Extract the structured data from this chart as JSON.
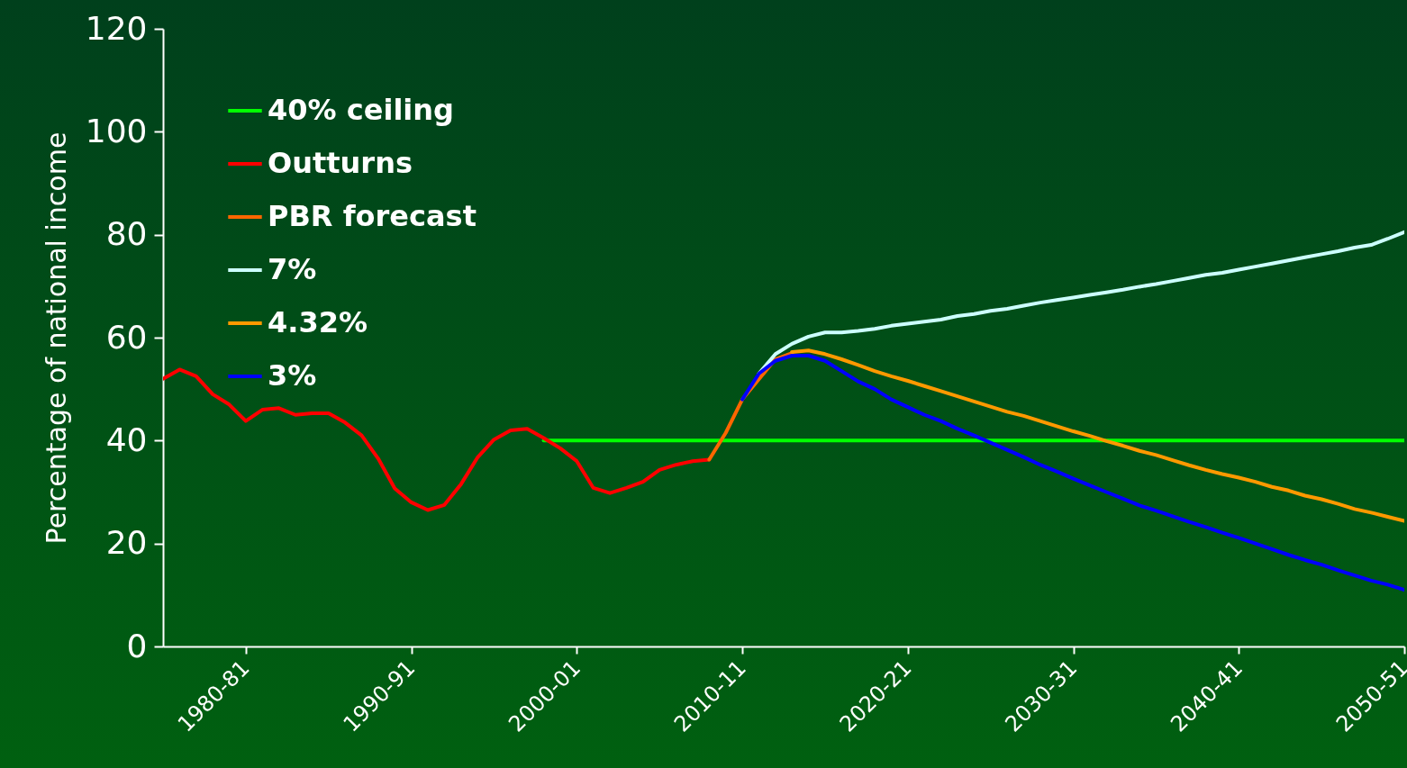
{
  "chart_data": {
    "type": "line",
    "ylabel": "Percentage of national income",
    "ylim": [
      0,
      120
    ],
    "yticks": [
      0,
      20,
      40,
      60,
      80,
      100,
      120
    ],
    "categories": [
      null,
      null,
      null,
      null,
      null,
      "1980-81",
      null,
      null,
      null,
      null,
      null,
      null,
      null,
      null,
      null,
      "1990-91",
      null,
      null,
      null,
      null,
      null,
      null,
      null,
      null,
      null,
      "2000-01",
      null,
      null,
      null,
      null,
      null,
      null,
      null,
      null,
      null,
      "2010-11",
      null,
      null,
      null,
      null,
      null,
      null,
      null,
      null,
      null,
      "2020-21",
      null,
      null,
      null,
      null,
      null,
      null,
      null,
      null,
      null,
      "2030-31",
      null,
      null,
      null,
      null,
      null,
      null,
      null,
      null,
      null,
      "2040-41",
      null,
      null,
      null,
      null,
      null,
      null,
      null,
      null,
      null,
      "2050-51"
    ],
    "legend": "top left",
    "grid": false,
    "line_style": "solid",
    "series": [
      {
        "name": "40% ceiling",
        "color": "#00ff00",
        "values": [
          null,
          null,
          null,
          null,
          null,
          null,
          null,
          null,
          null,
          null,
          null,
          null,
          null,
          null,
          null,
          null,
          null,
          null,
          null,
          null,
          null,
          null,
          null,
          40,
          40,
          40,
          40,
          40,
          40,
          40,
          40,
          40,
          40,
          40,
          40,
          40,
          40,
          40,
          40,
          40,
          40,
          40,
          40,
          40,
          40,
          40,
          40,
          40,
          40,
          40,
          40,
          40,
          40,
          40,
          40,
          40,
          40,
          40,
          40,
          40,
          40,
          40,
          40,
          40,
          40,
          40,
          40,
          40,
          40,
          40,
          40,
          40,
          40,
          40,
          40,
          40
        ]
      },
      {
        "name": "Outturns",
        "color": "#ff0000",
        "values": [
          52,
          53.8,
          52.5,
          49,
          47,
          43.8,
          46,
          46.3,
          45,
          45.3,
          45.3,
          43.5,
          41,
          36.5,
          30.7,
          28,
          26.5,
          27.5,
          31.5,
          36.7,
          40.2,
          42,
          42.3,
          40.5,
          38.5,
          36,
          30.8,
          29.8,
          30.8,
          32,
          34.3,
          35.3,
          36,
          36.3,
          null,
          null,
          null,
          null,
          null,
          null,
          null,
          null,
          null,
          null,
          null,
          null,
          null,
          null,
          null,
          null,
          null,
          null,
          null,
          null,
          null,
          null,
          null,
          null,
          null,
          null,
          null,
          null,
          null,
          null,
          null,
          null,
          null,
          null,
          null,
          null,
          null,
          null,
          null,
          null,
          null,
          null
        ]
      },
      {
        "name": "PBR forecast",
        "color": "#ff6600",
        "values": [
          null,
          null,
          null,
          null,
          null,
          null,
          null,
          null,
          null,
          null,
          null,
          null,
          null,
          null,
          null,
          null,
          null,
          null,
          null,
          null,
          null,
          null,
          null,
          null,
          null,
          null,
          null,
          null,
          null,
          null,
          null,
          null,
          null,
          36.3,
          41.5,
          48,
          null,
          55.8,
          57,
          null,
          null,
          null,
          null,
          null,
          null,
          null,
          null,
          null,
          null,
          null,
          null,
          null,
          null,
          null,
          null,
          null,
          null,
          null,
          null,
          null,
          null,
          null,
          null,
          null,
          null,
          null,
          null,
          null,
          null,
          null,
          null,
          null,
          null,
          null,
          null,
          null
        ]
      },
      {
        "name": "7%",
        "color": "#ccffff",
        "values": [
          null,
          null,
          null,
          null,
          null,
          null,
          null,
          null,
          null,
          null,
          null,
          null,
          null,
          null,
          null,
          null,
          null,
          null,
          null,
          null,
          null,
          null,
          null,
          null,
          null,
          null,
          null,
          null,
          null,
          null,
          null,
          null,
          null,
          null,
          null,
          null,
          53,
          56.8,
          58.8,
          60.2,
          61,
          61,
          61.3,
          61.7,
          62.3,
          62.7,
          63.1,
          63.5,
          64.2,
          64.6,
          65.2,
          65.6,
          66.2,
          66.8,
          67.3,
          67.8,
          68.3,
          68.8,
          69.3,
          69.9,
          70.4,
          71,
          71.6,
          72.2,
          72.6,
          73.2,
          73.8,
          74.4,
          75,
          75.6,
          76.2,
          76.8,
          77.5,
          78,
          79.2,
          80.5
        ]
      },
      {
        "name": "4.32%",
        "color": "#ff9900",
        "values": [
          null,
          null,
          null,
          null,
          null,
          null,
          null,
          null,
          null,
          null,
          null,
          null,
          null,
          null,
          null,
          null,
          null,
          null,
          null,
          null,
          null,
          null,
          null,
          null,
          null,
          null,
          null,
          null,
          null,
          null,
          null,
          null,
          null,
          null,
          null,
          null,
          null,
          null,
          57.2,
          57.5,
          56.8,
          55.8,
          54.7,
          53.5,
          52.5,
          51.6,
          50.6,
          49.6,
          48.6,
          47.6,
          46.6,
          45.6,
          44.8,
          43.8,
          42.8,
          41.8,
          40.9,
          39.9,
          39,
          38,
          37.2,
          36.2,
          35.2,
          34.3,
          33.5,
          32.8,
          32,
          31,
          30.3,
          29.3,
          28.6,
          27.7,
          26.7,
          26,
          25.2,
          24.4
        ]
      },
      {
        "name": "3%",
        "color": "#0000ff",
        "values": [
          null,
          null,
          null,
          null,
          null,
          null,
          null,
          null,
          null,
          null,
          null,
          null,
          null,
          null,
          null,
          null,
          null,
          null,
          null,
          null,
          null,
          null,
          null,
          null,
          null,
          null,
          null,
          null,
          null,
          null,
          null,
          null,
          null,
          null,
          null,
          48,
          53,
          55.5,
          56.5,
          56.5,
          55.5,
          53.5,
          51.5,
          50,
          48,
          46.5,
          45,
          43.8,
          42.3,
          41,
          39.6,
          38.2,
          36.8,
          35.3,
          34,
          32.6,
          31.3,
          30,
          28.7,
          27.4,
          26.4,
          25.3,
          24.2,
          23.2,
          22.1,
          21.1,
          20,
          18.9,
          17.8,
          16.8,
          15.9,
          14.8,
          13.8,
          12.8,
          12,
          11
        ]
      }
    ]
  }
}
